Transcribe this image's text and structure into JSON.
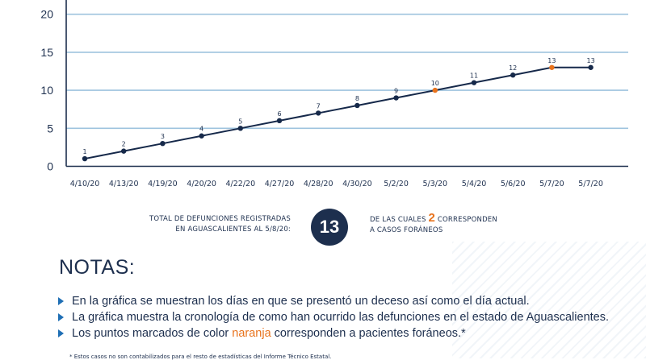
{
  "chart_data": {
    "type": "line",
    "categories": [
      "4/10/20",
      "4/13/20",
      "4/19/20",
      "4/20/20",
      "4/22/20",
      "4/27/20",
      "4/28/20",
      "4/30/20",
      "5/2/20",
      "5/3/20",
      "5/4/20",
      "5/6/20",
      "5/7/20",
      "5/7/20"
    ],
    "values": [
      1,
      2,
      3,
      4,
      5,
      6,
      7,
      8,
      9,
      10,
      11,
      12,
      13,
      13
    ],
    "highlight_indices": [
      9,
      12
    ],
    "y_ticks": [
      "0",
      "5",
      "10",
      "15",
      "20"
    ],
    "ylim": [
      0,
      21
    ],
    "grid": true,
    "colors": {
      "line": "#16294a",
      "point": "#16294a",
      "highlight": "#e8731d",
      "grid": "#9ec3de",
      "axis": "#1d2f4e"
    }
  },
  "summary": {
    "left_line1": "TOTAL DE DEFUNCIONES REGISTRADAS",
    "left_line2": "EN AGUASCALIENTES AL 5/8/20:",
    "total": "13",
    "right_pre": "DE LAS CUALES ",
    "right_num": "2",
    "right_post": " CORRESPONDEN",
    "right_line2": "A CASOS FORÁNEOS"
  },
  "notes": {
    "title": "NOTAS:",
    "item1": "En la gráfica se muestran los días en que se presentó un deceso así como el día actual.",
    "item2": "La gráfica muestra la cronología de como han ocurrido las defunciones en el estado de Aguascalientes.",
    "item3_pre": "Los puntos marcados de color ",
    "item3_hl": "naranja",
    "item3_post": " corresponden a pacientes foráneos.*",
    "footnote": "* Estos casos no son contabilizados para el resto de estadísticas del Informe Técnico Estatal."
  }
}
